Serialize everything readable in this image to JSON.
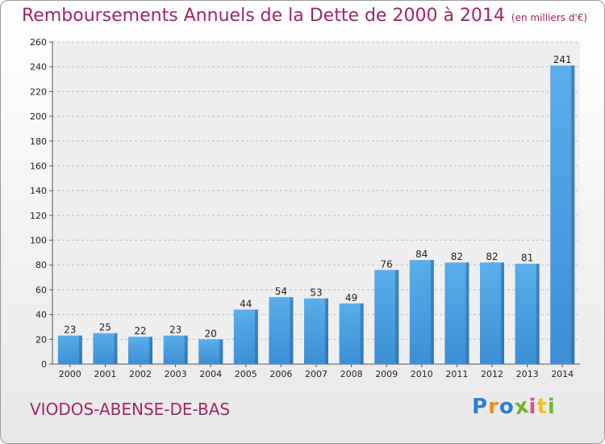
{
  "chart_data": {
    "type": "bar",
    "title": "Remboursements Annuels de la Dette de 2000 à 2014",
    "unit": "(en milliers d'€)",
    "categories": [
      "2000",
      "2001",
      "2002",
      "2003",
      "2004",
      "2005",
      "2006",
      "2007",
      "2008",
      "2009",
      "2010",
      "2011",
      "2012",
      "2013",
      "2014"
    ],
    "values": [
      23,
      25,
      22,
      23,
      20,
      44,
      54,
      53,
      49,
      76,
      84,
      82,
      82,
      81,
      241
    ],
    "ylim": [
      0,
      260
    ],
    "yticks": [
      0,
      20,
      40,
      60,
      80,
      100,
      120,
      140,
      160,
      180,
      200,
      220,
      240,
      260
    ],
    "grid": true,
    "bar_color": "#3d8fd6",
    "grid_color": "#bdbdbd"
  },
  "commune": "VIODOS-ABENSE-DE-BAS",
  "logo": {
    "letters": [
      "P",
      "r",
      "o",
      "x",
      "i",
      "t",
      "i"
    ],
    "colors": [
      "#2c7fd0",
      "#f08a1c",
      "#2c7fd0",
      "#6fb52e",
      "#e84a8a",
      "#f0c419",
      "#6fb52e"
    ]
  }
}
